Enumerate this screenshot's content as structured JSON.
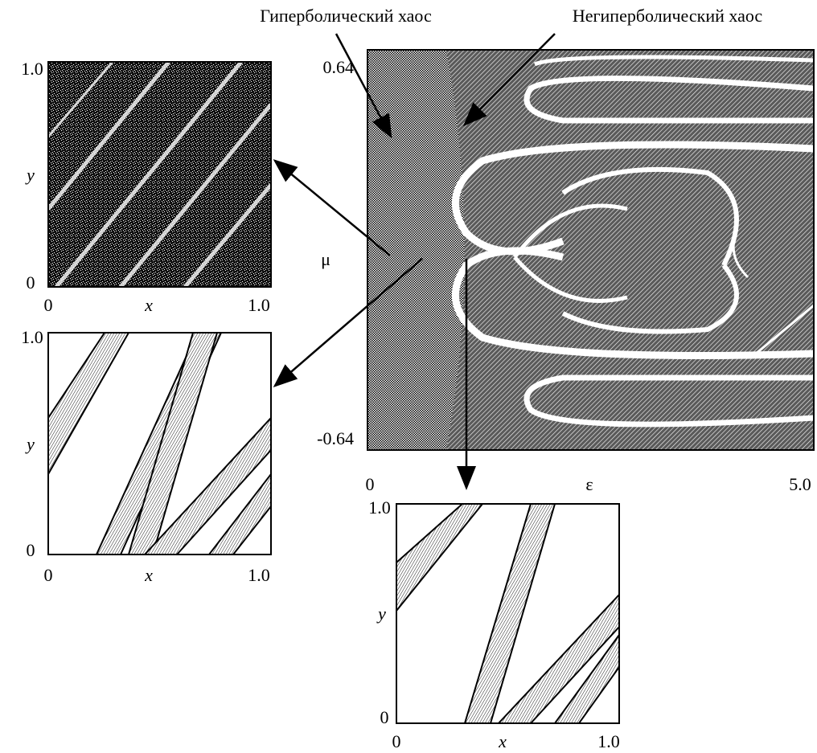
{
  "annotations": [
    "Гиперболический хаос",
    "Негиперболический хаос"
  ],
  "main_panel": {
    "y_max": "0.64",
    "y_min": "-0.64",
    "y_label": "μ",
    "x_min": "0",
    "x_label": "ε",
    "x_max": "5.0"
  },
  "insets": [
    {
      "y_max": "1.0",
      "y_label": "y",
      "y_min": "0",
      "x_min": "0",
      "x_label": "x",
      "x_max": "1.0"
    },
    {
      "y_max": "1.0",
      "y_label": "y",
      "y_min": "0",
      "x_min": "0",
      "x_label": "x",
      "x_max": "1.0"
    },
    {
      "y_max": "1.0",
      "y_label": "y",
      "y_min": "0",
      "x_min": "0",
      "x_label": "x",
      "x_max": "1.0"
    }
  ]
}
